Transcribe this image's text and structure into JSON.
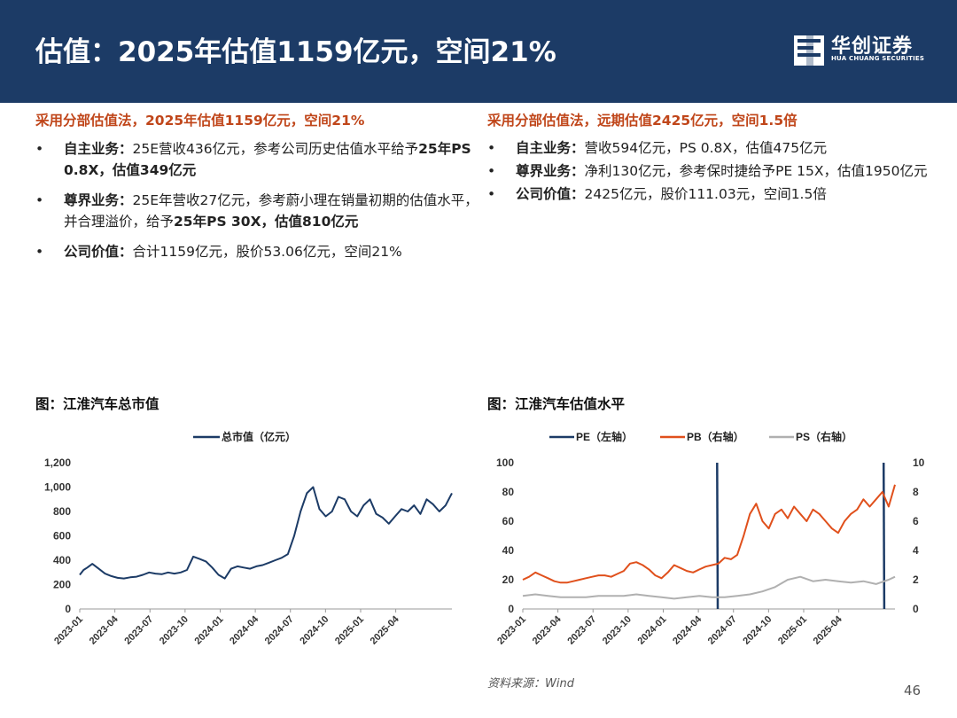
{
  "header": {
    "title": "估值：2025年估值1159亿元，空间21%",
    "logo_cn": "华创证券",
    "logo_en": "HUA CHUANG SECURITIES"
  },
  "left": {
    "heading": "采用分部估值法，2025年估值1159亿元，空间21%",
    "bullets": [
      {
        "bold": "自主业务：",
        "text": "25E营收436亿元，参考公司历史估值水平给予",
        "bold2": "25年PS 0.8X，估值349亿元"
      },
      {
        "bold": "尊界业务：",
        "text": "25E年营收27亿元，参考蔚小理在销量初期的估值水平，并合理溢价，给予",
        "bold2": "25年PS 30X，估值810亿元"
      },
      {
        "bold": "公司价值：",
        "text": "合计1159亿元，股价53.06亿元，空间21%"
      }
    ]
  },
  "right": {
    "heading": "采用分部估值法，远期估值2425亿元，空间1.5倍",
    "bullets": [
      {
        "bold": "自主业务：",
        "text": "营收594亿元，PS 0.8X，估值475亿元"
      },
      {
        "bold": "尊界业务：",
        "text": "净利130亿元，参考保时捷给予PE 15X，估值1950亿元"
      },
      {
        "bold": "公司价值：",
        "text": "2425亿元，股价111.03元，空间1.5倍"
      }
    ]
  },
  "chart1_title": "图：江淮汽车总市值",
  "chart2_title": "图：江淮汽车估值水平",
  "source": "资料来源：Wind",
  "page_number": "46",
  "colors": {
    "header": "#1c3b66",
    "accent": "#c0461a",
    "pe": "#1c3b66",
    "pb": "#e0501c",
    "ps": "#b0b0b0"
  },
  "chart_data": [
    {
      "type": "line",
      "title": "",
      "legend": "top-center",
      "x_ticks": [
        "2023-01",
        "2023-04",
        "2023-07",
        "2023-10",
        "2024-01",
        "2024-04",
        "2024-07",
        "2024-10",
        "2025-01",
        "2025-04"
      ],
      "ylim": [
        0,
        1200
      ],
      "y_ticks": [
        "1,200",
        "1,000",
        "800",
        "600",
        "400",
        "200",
        "0"
      ],
      "series": [
        {
          "name": "总市值（亿元）",
          "x": [
            0,
            0.3,
            0.6,
            1,
            1.5,
            2,
            2.5,
            3,
            3.5,
            4,
            4.5,
            5,
            5.5,
            6,
            6.5,
            7,
            7.5,
            8,
            8.5,
            9,
            9.5,
            10,
            10.5,
            11,
            11.5,
            12,
            12.5,
            13,
            13.5,
            14,
            14.5,
            15,
            15.5,
            16,
            16.5,
            17,
            17.5,
            18,
            18.5,
            19,
            19.5,
            20,
            20.5,
            21,
            21.5,
            22,
            22.5,
            23,
            23.5,
            24,
            24.5,
            25,
            25.5,
            26,
            26.5,
            27,
            27.5,
            28,
            28.5,
            29,
            29.5
          ],
          "values": [
            280,
            320,
            340,
            370,
            330,
            290,
            270,
            255,
            250,
            260,
            265,
            280,
            300,
            290,
            285,
            300,
            290,
            300,
            320,
            430,
            410,
            390,
            340,
            280,
            250,
            330,
            350,
            340,
            330,
            350,
            360,
            380,
            400,
            420,
            450,
            600,
            800,
            950,
            1000,
            820,
            760,
            800,
            920,
            900,
            800,
            760,
            850,
            900,
            780,
            750,
            700,
            760,
            820,
            800,
            850,
            780,
            900,
            860,
            800,
            850,
            950
          ]
        }
      ]
    },
    {
      "type": "line",
      "title": "",
      "legend": "top-center",
      "x_ticks": [
        "2023-01",
        "2023-04",
        "2023-07",
        "2023-10",
        "2024-01",
        "2024-04",
        "2024-07",
        "2024-10",
        "2025-01",
        "2025-04"
      ],
      "ylim": [
        0,
        100
      ],
      "y_ticks": [
        "100",
        "80",
        "60",
        "40",
        "20",
        "0"
      ],
      "y2lim": [
        0,
        10
      ],
      "y2_ticks": [
        "10",
        "8",
        "6",
        "4",
        "2",
        "0"
      ],
      "series": [
        {
          "name": "PE（左轴）",
          "axis": "left",
          "x": [
            15.4,
            15.45
          ],
          "values": [
            100,
            0
          ],
          "x2": [
            28.6,
            28.65
          ],
          "values2": [
            100,
            0
          ]
        },
        {
          "name": "PB（右轴）",
          "axis": "right",
          "x": [
            0,
            0.5,
            1,
            1.5,
            2,
            2.5,
            3,
            3.5,
            4,
            4.5,
            5,
            5.5,
            6,
            6.5,
            7,
            7.5,
            8,
            8.5,
            9,
            9.5,
            10,
            10.5,
            11,
            11.5,
            12,
            12.5,
            13,
            13.5,
            14,
            14.5,
            15,
            15.5,
            16,
            16.5,
            17,
            17.5,
            18,
            18.5,
            19,
            19.5,
            20,
            20.5,
            21,
            21.5,
            22,
            22.5,
            23,
            23.5,
            24,
            24.5,
            25,
            25.5,
            26,
            26.5,
            27,
            27.5,
            28,
            28.5,
            29,
            29.5
          ],
          "values": [
            2.0,
            2.2,
            2.5,
            2.3,
            2.1,
            1.9,
            1.8,
            1.8,
            1.9,
            2.0,
            2.1,
            2.2,
            2.3,
            2.3,
            2.2,
            2.4,
            2.6,
            3.1,
            3.2,
            3.0,
            2.7,
            2.3,
            2.1,
            2.5,
            3.0,
            2.8,
            2.6,
            2.5,
            2.7,
            2.9,
            3.0,
            3.1,
            3.5,
            3.4,
            3.7,
            5.0,
            6.5,
            7.2,
            6.0,
            5.5,
            6.5,
            6.8,
            6.2,
            7.0,
            6.5,
            6.0,
            6.8,
            6.5,
            6.0,
            5.5,
            5.2,
            6.0,
            6.5,
            6.8,
            7.5,
            7.0,
            7.5,
            8.0,
            7.0,
            8.5
          ]
        },
        {
          "name": "PS（右轴）",
          "axis": "right",
          "x": [
            0,
            1,
            2,
            3,
            4,
            5,
            6,
            7,
            8,
            9,
            10,
            11,
            12,
            13,
            14,
            15,
            16,
            17,
            18,
            19,
            20,
            21,
            22,
            23,
            24,
            25,
            26,
            27,
            28,
            29,
            29.5
          ],
          "values": [
            0.9,
            1.0,
            0.9,
            0.8,
            0.8,
            0.8,
            0.9,
            0.9,
            0.9,
            1.0,
            0.9,
            0.8,
            0.7,
            0.8,
            0.9,
            0.8,
            0.8,
            0.9,
            1.0,
            1.2,
            1.5,
            2.0,
            2.2,
            1.9,
            2.0,
            1.9,
            1.8,
            1.9,
            1.7,
            2.0,
            2.2
          ]
        }
      ]
    }
  ]
}
